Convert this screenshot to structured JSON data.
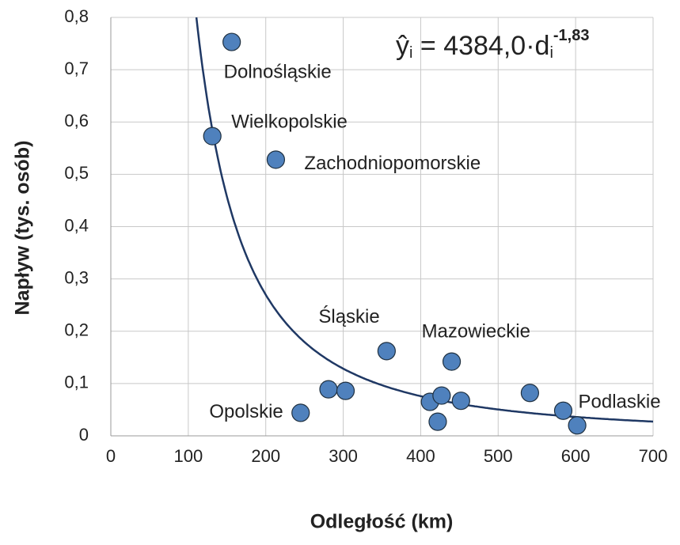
{
  "chart_data": {
    "type": "scatter",
    "x_label": "Odległość (km)",
    "y_label": "Napływ (tys. osób)",
    "x": [
      156,
      131,
      213,
      356,
      440,
      245,
      584,
      281,
      303,
      412,
      427,
      422,
      452,
      541,
      602
    ],
    "values": [
      0.753,
      0.573,
      0.528,
      0.162,
      0.142,
      0.044,
      0.048,
      0.089,
      0.086,
      0.065,
      0.077,
      0.027,
      0.067,
      0.082,
      0.02
    ],
    "point_labels": [
      "Dolnośląskie",
      "Wielkopolskie",
      "Zachodniopomorskie",
      "Śląskie",
      "Mazowieckie",
      "Opolskie",
      "Podlaskie",
      null,
      null,
      null,
      null,
      null,
      null,
      null,
      null
    ],
    "color": "#4f81bd",
    "fit": {
      "a": {
        "value": 4384.0,
        "label": "4384,0"
      },
      "b": {
        "value": -1.83,
        "label": "-1,83"
      },
      "color": "#1f3864"
    },
    "equation_parts": [
      "ŷ",
      "i",
      " = ",
      "·d",
      "i"
    ],
    "xlim": [
      0,
      700
    ],
    "xticks": [
      0,
      100,
      200,
      300,
      400,
      500,
      600,
      700
    ],
    "ylim": [
      0,
      0.8
    ],
    "yticks": [
      0,
      {
        "value": 0.1,
        "label": "0,1"
      },
      {
        "value": 0.2,
        "label": "0,2"
      },
      {
        "value": 0.3,
        "label": "0,3"
      },
      {
        "value": 0.4,
        "label": "0,4"
      },
      {
        "value": 0.5,
        "label": "0,5"
      },
      {
        "value": 0.6,
        "label": "0,6"
      },
      {
        "value": 0.7,
        "label": "0,7"
      },
      {
        "value": 0.8,
        "label": "0,8"
      }
    ],
    "grid": true
  }
}
